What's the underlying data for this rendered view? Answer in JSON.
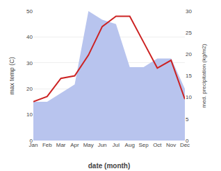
{
  "chart_data": {
    "type": "line",
    "categories": [
      "Jan",
      "Feb",
      "Mar",
      "Apr",
      "May",
      "Jun",
      "Jul",
      "Aug",
      "Sep",
      "Oct",
      "Nov",
      "Dec"
    ],
    "xlabel": "date (month)",
    "ylabel": "max temp (C)",
    "y2label": "med. precipitation (kg/m2)",
    "series": [
      {
        "type": "area",
        "color": "#b8c4ee",
        "axis": "y2",
        "values": [
          9,
          9,
          11,
          13,
          30,
          28,
          27,
          17,
          17,
          19,
          19,
          12
        ]
      },
      {
        "type": "line",
        "color": "#cc2222",
        "values": [
          15,
          17,
          24,
          25,
          33,
          44,
          48,
          48,
          38,
          28,
          31,
          16
        ]
      }
    ],
    "ylim": [
      0,
      50
    ],
    "yticks": [
      0,
      10,
      20,
      30,
      40,
      50
    ],
    "y2lim": [
      0,
      30
    ],
    "y2ticks": [
      0,
      5,
      10,
      15,
      20,
      25,
      30
    ],
    "grid": true
  }
}
